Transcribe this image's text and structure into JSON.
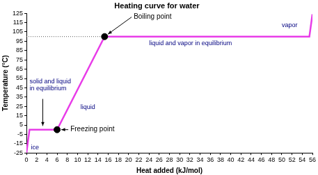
{
  "chart_data": {
    "type": "line",
    "title": "Heating curve for water",
    "x_label": "Heat added (kJ/mol)",
    "y_label": "Temperature (°C)",
    "x": [
      0,
      0.6,
      6,
      15.3,
      55.4,
      56
    ],
    "values": [
      -25,
      0,
      0,
      100,
      100,
      124
    ],
    "color": "#e83ce8",
    "xlim": [
      0,
      56
    ],
    "xticks": [
      0,
      2,
      4,
      6,
      8,
      10,
      12,
      14,
      16,
      18,
      20,
      22,
      24,
      26,
      28,
      30,
      32,
      34,
      36,
      38,
      40,
      42,
      44,
      46,
      48,
      50,
      52,
      54,
      56
    ],
    "ylim": [
      -25,
      125
    ],
    "yticks": [
      -25,
      -15,
      -5,
      5,
      15,
      25,
      35,
      45,
      55,
      65,
      75,
      85,
      95,
      105,
      115,
      125
    ],
    "grid": false,
    "markers": [
      {
        "label": "Boiling point",
        "x": 15.3,
        "y": 100
      },
      {
        "label": "Freezing point",
        "x": 6,
        "y": 0
      }
    ],
    "annotations": [
      "solid and liquid\nin equilibrium",
      "liquid",
      "liquid and vapor in equilibrium",
      "vapor",
      "ice"
    ]
  }
}
